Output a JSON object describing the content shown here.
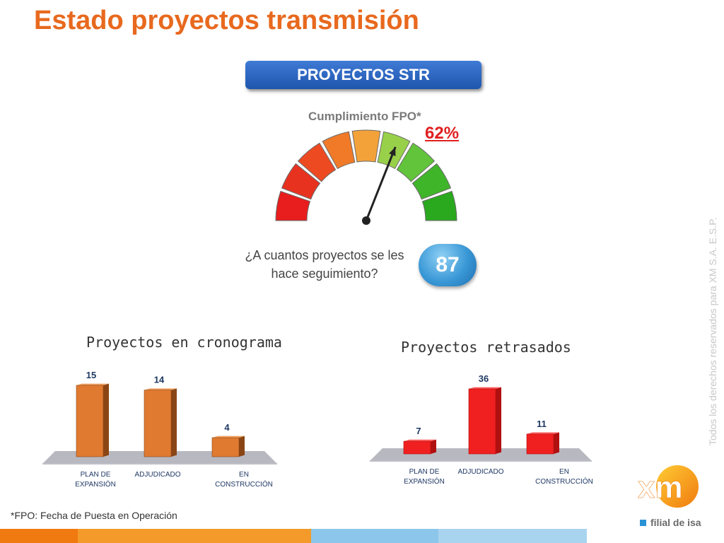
{
  "header": {
    "title": "Estado proyectos transmisión"
  },
  "section_button": {
    "label": "PROYECTOS STR"
  },
  "gauge": {
    "label": "Cumplimiento FPO*",
    "value_text": "62%",
    "value": 62
  },
  "tracked": {
    "question": "¿A cuantos proyectos se les hace seguimiento?",
    "count": "87"
  },
  "chart_data": [
    {
      "type": "bar",
      "title": "Proyectos en cronograma",
      "categories": [
        "PLAN DE EXPANSIÓN",
        "ADJUDICADO",
        "EN CONSTRUCCIÓN"
      ],
      "values": [
        15,
        14,
        4
      ],
      "color": "#e07a30",
      "ylim": [
        0,
        15
      ]
    },
    {
      "type": "bar",
      "title": "Proyectos retrasados",
      "categories": [
        "PLAN DE EXPANSIÓN",
        "ADJUDICADO",
        "EN CONSTRUCCIÓN"
      ],
      "values": [
        7,
        36,
        11
      ],
      "color": "#f02020",
      "ylim": [
        0,
        36
      ]
    }
  ],
  "footnote": "*FPO: Fecha de Puesta en Operación",
  "watermark": "Todos los derechos reservados para XM S.A. E.S.P.",
  "logo": {
    "text": "xm",
    "subtitle": "filial de isa"
  },
  "colors": {
    "title": "#e8691e",
    "accent_blue": "#2a6bc8",
    "bar_orange": "#e07a30",
    "bar_red": "#f02020"
  }
}
